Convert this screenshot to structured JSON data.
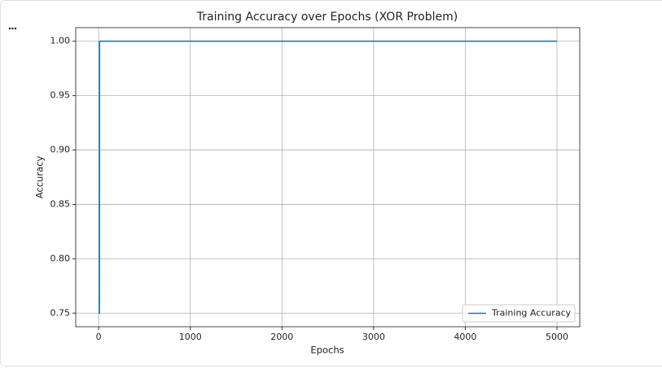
{
  "chart_data": {
    "type": "line",
    "title": "Training Accuracy over Epochs (XOR Problem)",
    "x_label": "Epochs",
    "y_label": "Accuracy",
    "x": [
      0,
      9,
      10,
      4999
    ],
    "series": [
      {
        "name": "Training Accuracy",
        "color": "#1f77b4",
        "values": [
          0.75,
          0.75,
          1.0,
          1.0
        ]
      }
    ],
    "xlim": [
      -250,
      5249
    ],
    "xticks": [
      0,
      1000,
      2000,
      3000,
      4000,
      5000
    ],
    "ylim": [
      0.7375,
      1.0125
    ],
    "yticks": [
      0.75,
      {
        "value": 0.8,
        "label": "0.80"
      },
      0.85,
      {
        "value": 0.9,
        "label": "0.90"
      },
      0.95,
      {
        "value": 1.0,
        "label": "1.00"
      }
    ],
    "grid": true,
    "legend": "lower right"
  }
}
